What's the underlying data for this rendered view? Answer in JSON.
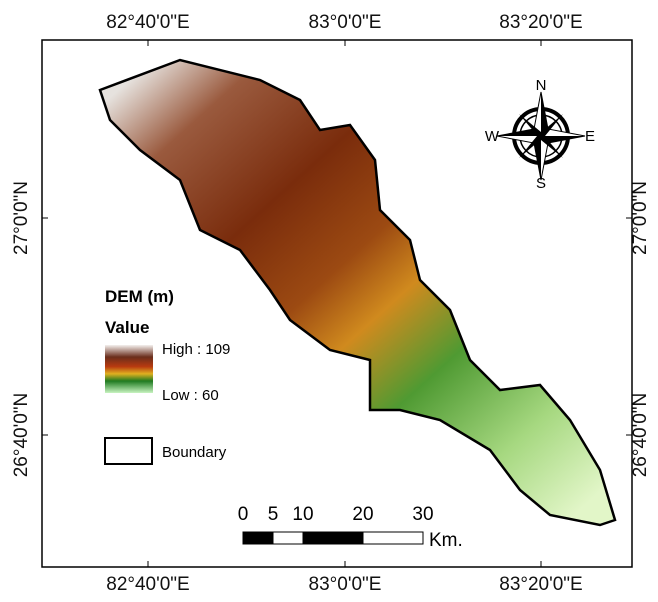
{
  "map": {
    "top_labels": [
      "82°40'0\"E",
      "83°0'0\"E",
      "83°20'0\"E"
    ],
    "bottom_labels": [
      "82°40'0\"E",
      "83°0'0\"E",
      "83°20'0\"E"
    ],
    "left_labels": [
      "27°0'0\"N",
      "26°40'0\"N"
    ],
    "right_labels": [
      "27°0'0\"N",
      "26°40'0\"N"
    ],
    "compass": {
      "n": "N",
      "e": "E",
      "s": "S",
      "w": "W"
    },
    "legend": {
      "title": "DEM (m)",
      "subtitle": "Value",
      "high": "High : 109",
      "low": "Low : 60",
      "boundary": "Boundary"
    },
    "scale": {
      "ticks": [
        0,
        5,
        10,
        20,
        30
      ],
      "unit": "Km."
    }
  }
}
